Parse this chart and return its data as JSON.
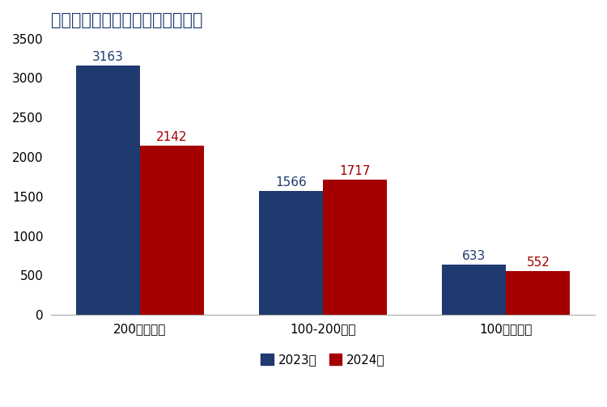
{
  "title": "各市场规模螺纹消费总量（万吨）",
  "categories": [
    "200万吨以上",
    "100-200万吨",
    "100万吨以下"
  ],
  "series": [
    {
      "name": "2023年",
      "values": [
        3163,
        1566,
        633
      ],
      "color": "#1F3A6E"
    },
    {
      "name": "2024年",
      "values": [
        2142,
        1717,
        552
      ],
      "color": "#A50000"
    }
  ],
  "ylim": [
    0,
    3500
  ],
  "yticks": [
    0,
    500,
    1000,
    1500,
    2000,
    2500,
    3000,
    3500
  ],
  "bar_width": 0.35,
  "title_color": "#1F3A6E",
  "title_fontsize": 15,
  "label_fontsize": 11,
  "tick_fontsize": 11,
  "legend_fontsize": 11,
  "background_color": "#FFFFFF",
  "grid": false
}
